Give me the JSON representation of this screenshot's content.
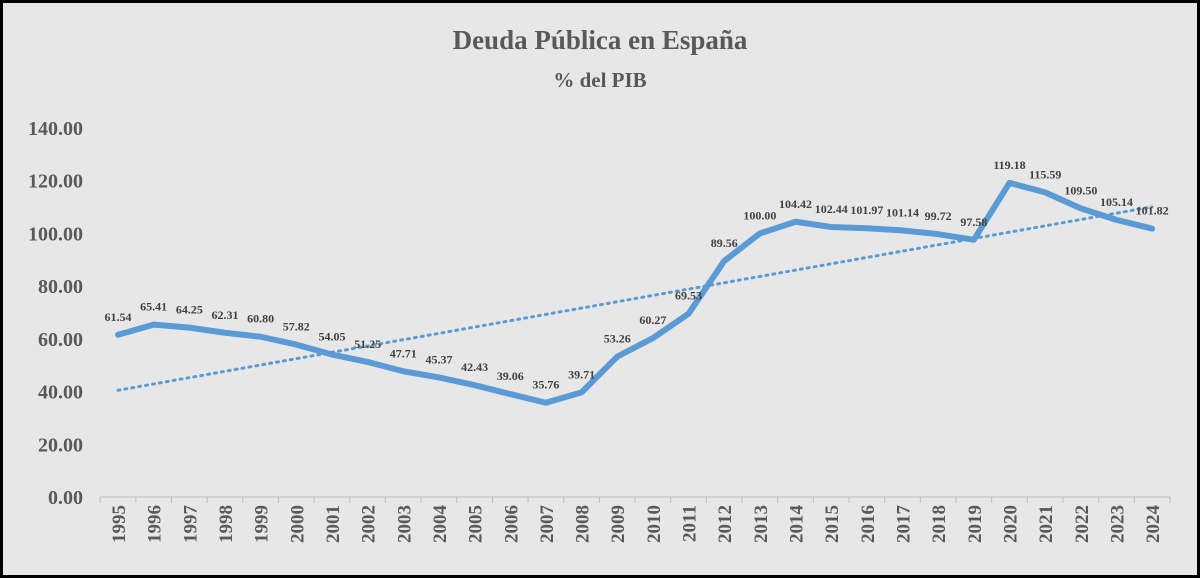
{
  "chart_data": {
    "type": "line",
    "title": "Deuda Pública en España",
    "subtitle": "% del PIB",
    "xlabel": "",
    "ylabel": "",
    "ylim": [
      0,
      140
    ],
    "yticks": [
      "0.00",
      "20.00",
      "40.00",
      "60.00",
      "80.00",
      "100.00",
      "120.00",
      "140.00"
    ],
    "grid": false,
    "legend": "none",
    "trendline": "linear, dotted",
    "colors": {
      "series": "#5b9bd5",
      "background": "#e7e7e7",
      "text": "#595959"
    },
    "categories": [
      "1995",
      "1996",
      "1997",
      "1998",
      "1999",
      "2000",
      "2001",
      "2002",
      "2003",
      "2004",
      "2005",
      "2006",
      "2007",
      "2008",
      "2009",
      "2010",
      "2011",
      "2012",
      "2013",
      "2014",
      "2015",
      "2016",
      "2017",
      "2018",
      "2019",
      "2020",
      "2021",
      "2022",
      "2023",
      "2024"
    ],
    "values": [
      61.54,
      65.41,
      64.25,
      62.31,
      60.8,
      57.82,
      54.05,
      51.25,
      47.71,
      45.37,
      42.43,
      39.06,
      35.76,
      39.71,
      53.26,
      60.27,
      69.53,
      89.56,
      100.0,
      104.42,
      102.44,
      101.97,
      101.14,
      99.72,
      97.58,
      119.18,
      115.59,
      109.5,
      105.14,
      101.82
    ],
    "labels": [
      "61.54",
      "65.41",
      "64.25",
      "62.31",
      "60.80",
      "57.82",
      "54.05",
      "51.25",
      "47.71",
      "45.37",
      "42.43",
      "39.06",
      "35.76",
      "39.71",
      "53.26",
      "60.27",
      "69.53",
      "89.56",
      "100.00",
      "104.42",
      "102.44",
      "101.97",
      "101.14",
      "99.72",
      "97.58",
      "119.18",
      "115.59",
      "109.50",
      "105.14",
      "101.82"
    ]
  }
}
